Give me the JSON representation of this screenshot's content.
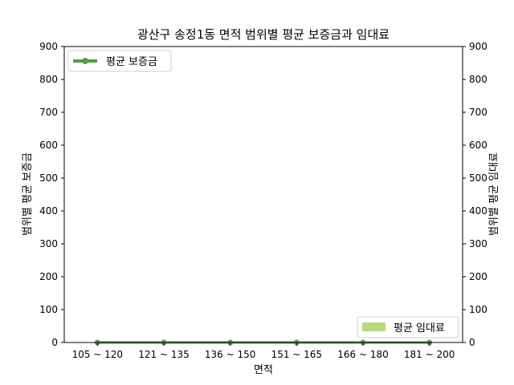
{
  "chart_data": {
    "type": "line",
    "title": "광산구 송정1동 면적 범위별 평균 보증금과 임대료",
    "xlabel": "면적",
    "ylabel_left": "범위별 평균 보증금",
    "ylabel_right": "범위별 평균 임대료",
    "categories": [
      "105 ~ 120",
      "121 ~ 135",
      "136 ~ 150",
      "151 ~ 165",
      "166 ~ 180",
      "181 ~ 200"
    ],
    "ylim_left": [
      0,
      900
    ],
    "ylim_right": [
      0,
      900
    ],
    "yticks": [
      0,
      100,
      200,
      300,
      400,
      500,
      600,
      700,
      800,
      900
    ],
    "grid": false,
    "series": [
      {
        "name": "평균 보증금",
        "kind": "line",
        "axis": "left",
        "color": "#5a9a50",
        "values": [
          0,
          0,
          0,
          0,
          0,
          0
        ]
      },
      {
        "name": "평균 임대료",
        "kind": "bar",
        "axis": "right",
        "color": "#b8d87a",
        "values": [
          0,
          0,
          0,
          0,
          0,
          0
        ]
      }
    ],
    "legends": [
      {
        "series": "평균 보증금",
        "placement": "top-left"
      },
      {
        "series": "평균 임대료",
        "placement": "bottom-right"
      }
    ]
  }
}
